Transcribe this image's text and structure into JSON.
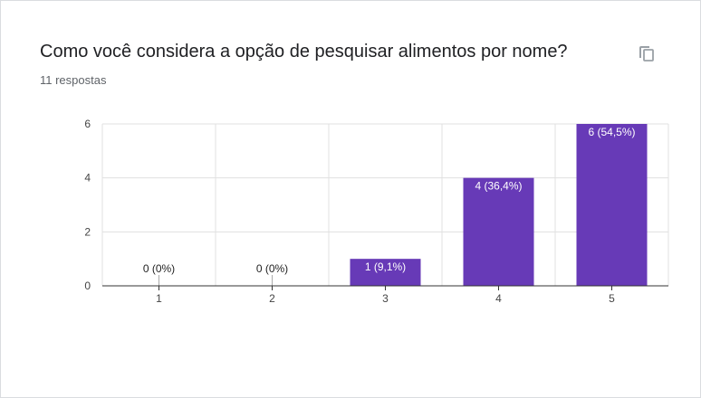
{
  "question": {
    "title": "Como você considera a opção de pesquisar alimentos por nome?",
    "responses": "11 respostas"
  },
  "icons": {
    "copy": "copy-icon"
  },
  "colors": {
    "bar": "#673ab7",
    "grid": "#e0e0e0",
    "axis": "#333333"
  },
  "chart_data": {
    "type": "bar",
    "categories": [
      "1",
      "2",
      "3",
      "4",
      "5"
    ],
    "values": [
      0,
      0,
      1,
      4,
      6
    ],
    "data_labels": [
      "0 (0%)",
      "0 (0%)",
      "1 (9,1%)",
      "4 (36,4%)",
      "6 (54,5%)"
    ],
    "yticks": [
      "0",
      "2",
      "4",
      "6"
    ],
    "ylim": [
      0,
      6
    ],
    "grid": true,
    "xlabel": "",
    "ylabel": ""
  }
}
